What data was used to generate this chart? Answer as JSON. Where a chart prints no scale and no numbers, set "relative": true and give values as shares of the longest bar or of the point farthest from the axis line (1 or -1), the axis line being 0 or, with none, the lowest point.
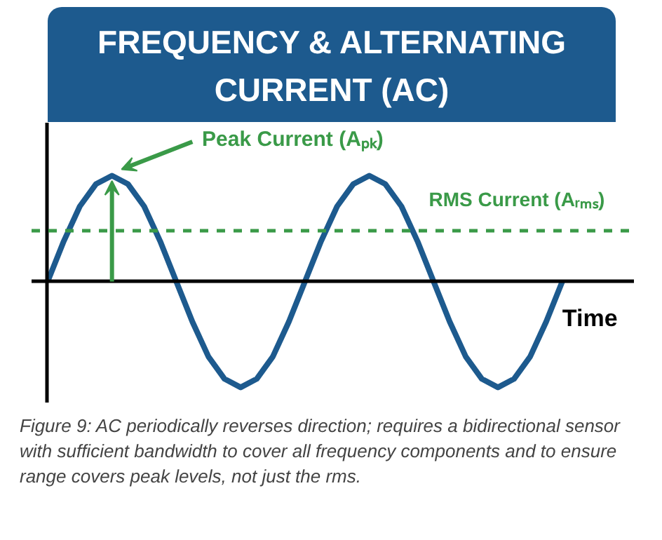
{
  "chart_data": {
    "type": "line",
    "relative": true,
    "title": "FREQUENCY & ALTERNATING CURRENT (AC)",
    "xlabel": "Time",
    "categories": [
      null,
      null,
      null,
      null,
      null,
      null,
      null,
      null,
      null,
      null,
      null,
      null,
      null,
      null,
      null,
      null,
      null,
      null,
      null,
      null,
      null,
      null,
      null,
      null,
      null,
      null,
      null,
      null,
      null,
      null,
      null,
      null,
      null
    ],
    "series": [
      {
        "color": "#1d5a8e",
        "values": [
          0,
          0.38,
          0.71,
          0.92,
          1,
          0.92,
          0.71,
          0.38,
          0,
          -0.38,
          -0.71,
          -0.92,
          -1,
          -0.92,
          -0.71,
          -0.38,
          0,
          0.38,
          0.71,
          0.92,
          1,
          0.92,
          0.71,
          0.38,
          0,
          -0.38,
          -0.71,
          -0.92,
          -1,
          -0.92,
          -0.71,
          -0.38,
          0
        ]
      }
    ],
    "ref_lines": [
      {
        "axis": "y",
        "value": 0.48,
        "label": "RMS Current (Aᵣₘₛ)",
        "color": "#3a9a48",
        "line_style": "dashed"
      }
    ],
    "annotations": [
      "Peak Current (Aₚₖ)",
      "Figure 9: AC periodically reverses direction; requires a bidirectional sensor with sufficient bandwidth to cover all frequency components and to ensure range covers peak levels, not just the rms."
    ],
    "grid": false,
    "marker": "none",
    "line_style": "solid",
    "tick_labels": false
  }
}
